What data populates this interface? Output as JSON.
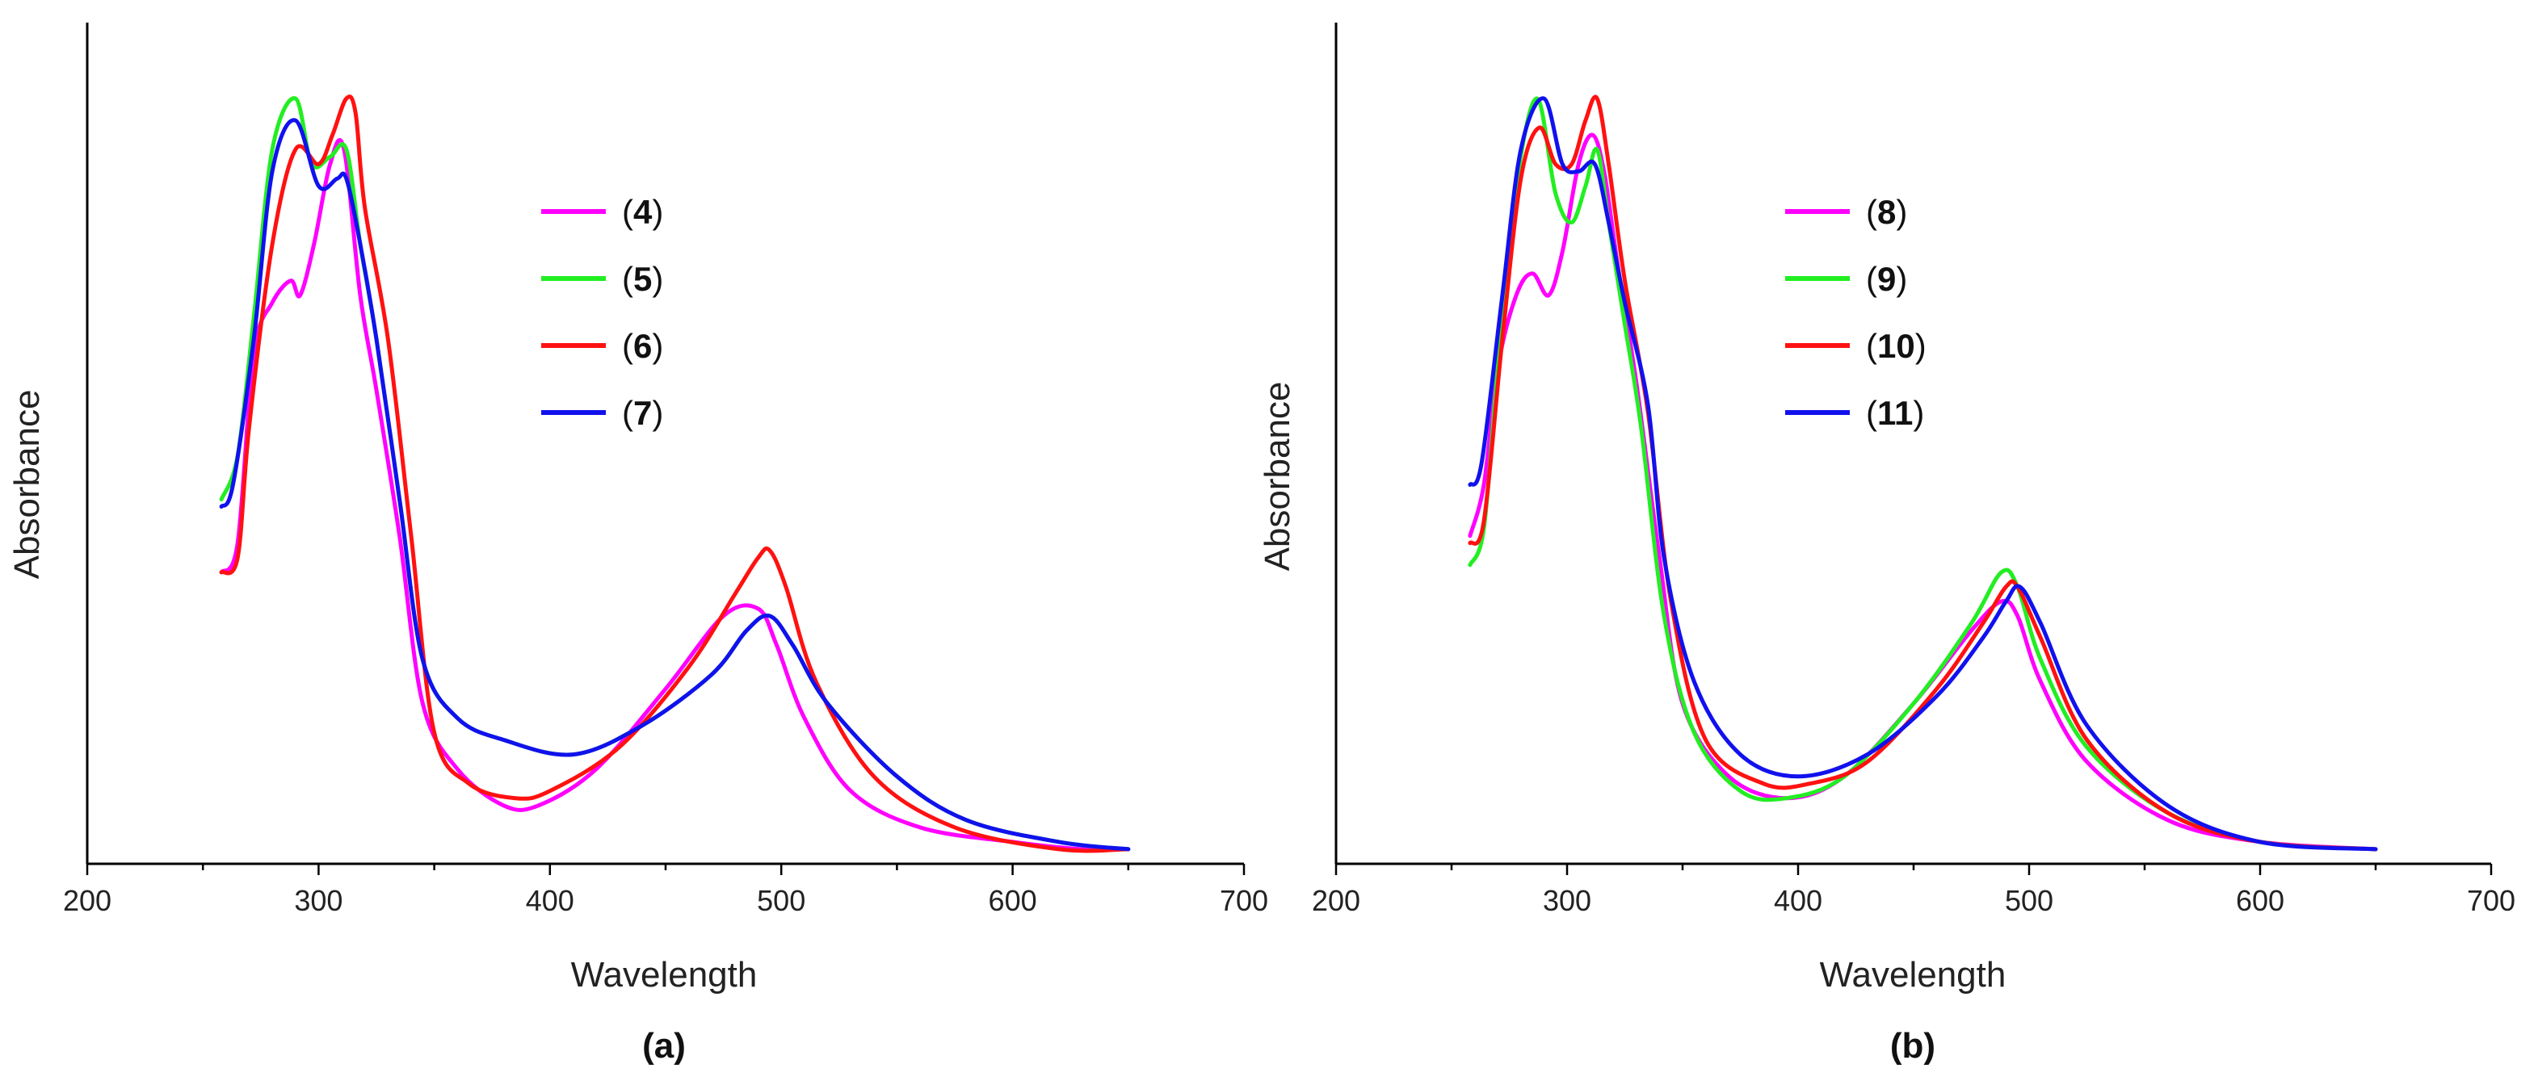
{
  "chart_data": [
    {
      "type": "line",
      "panel_label": "(a)",
      "xlabel": "Wavelength",
      "ylabel": "Absorbance",
      "xlim": [
        200,
        700
      ],
      "ylim": [
        0,
        1.05
      ],
      "xticks": [
        200,
        300,
        400,
        500,
        600,
        700
      ],
      "xtick_labels": [
        "200",
        "300",
        "400",
        "500",
        "600",
        "700"
      ],
      "grid": false,
      "legend_position": "upper-middle",
      "series": [
        {
          "name": "4",
          "color": "#ff00ff",
          "x": [
            258,
            265,
            272,
            280,
            288,
            292,
            298,
            305,
            311,
            318,
            325,
            335,
            345,
            360,
            380,
            395,
            420,
            450,
            475,
            490,
            498,
            510,
            530,
            560,
            600,
            630,
            650
          ],
          "y": [
            0.4,
            0.44,
            0.7,
            0.77,
            0.8,
            0.78,
            0.85,
            0.96,
            0.98,
            0.78,
            0.65,
            0.45,
            0.22,
            0.13,
            0.08,
            0.08,
            0.13,
            0.24,
            0.34,
            0.35,
            0.3,
            0.2,
            0.1,
            0.05,
            0.03,
            0.02,
            0.02
          ]
        },
        {
          "name": "5",
          "color": "#22ee22",
          "x": [
            258,
            265,
            272,
            280,
            290,
            297,
            305,
            312,
            318,
            325,
            335,
            345,
            360,
            380,
            410,
            440,
            470,
            485,
            495,
            505,
            520,
            550,
            580,
            620,
            650
          ],
          "y": [
            0.5,
            0.56,
            0.75,
            0.98,
            1.05,
            0.96,
            0.97,
            0.98,
            0.85,
            0.72,
            0.5,
            0.28,
            0.2,
            0.17,
            0.15,
            0.19,
            0.26,
            0.32,
            0.34,
            0.3,
            0.22,
            0.12,
            0.06,
            0.03,
            0.02
          ]
        },
        {
          "name": "6",
          "color": "#ff1111",
          "x": [
            258,
            265,
            270,
            280,
            290,
            300,
            306,
            312,
            316,
            320,
            330,
            340,
            350,
            365,
            385,
            400,
            430,
            460,
            480,
            490,
            495,
            502,
            515,
            540,
            575,
            620,
            650
          ],
          "y": [
            0.4,
            0.42,
            0.6,
            0.85,
            0.98,
            0.96,
            1.0,
            1.05,
            1.03,
            0.9,
            0.72,
            0.45,
            0.18,
            0.11,
            0.09,
            0.1,
            0.16,
            0.27,
            0.37,
            0.42,
            0.43,
            0.38,
            0.25,
            0.12,
            0.05,
            0.02,
            0.02
          ]
        },
        {
          "name": "7",
          "color": "#1111ee",
          "x": [
            258,
            263,
            272,
            280,
            290,
            300,
            308,
            312,
            318,
            325,
            335,
            345,
            360,
            380,
            410,
            440,
            470,
            485,
            495,
            505,
            520,
            550,
            580,
            620,
            650
          ],
          "y": [
            0.49,
            0.52,
            0.72,
            0.95,
            1.02,
            0.93,
            0.94,
            0.94,
            0.85,
            0.72,
            0.5,
            0.28,
            0.2,
            0.17,
            0.15,
            0.19,
            0.26,
            0.32,
            0.34,
            0.3,
            0.22,
            0.12,
            0.06,
            0.03,
            0.02
          ]
        }
      ]
    },
    {
      "type": "line",
      "panel_label": "(b)",
      "xlabel": "Wavelength",
      "ylabel": "Absorbance",
      "xlim": [
        200,
        700
      ],
      "ylim": [
        0,
        1.05
      ],
      "xticks": [
        200,
        300,
        400,
        500,
        600,
        700
      ],
      "xtick_labels": [
        "200",
        "300",
        "400",
        "500",
        "600",
        "700"
      ],
      "grid": false,
      "legend_position": "upper-middle",
      "series": [
        {
          "name": "8",
          "color": "#ff00ff",
          "x": [
            258,
            264,
            270,
            278,
            285,
            292,
            298,
            305,
            311,
            316,
            322,
            330,
            340,
            350,
            370,
            395,
            420,
            450,
            475,
            488,
            495,
            505,
            525,
            560,
            600,
            650
          ],
          "y": [
            0.45,
            0.52,
            0.68,
            0.78,
            0.81,
            0.78,
            0.84,
            0.96,
            1.0,
            0.95,
            0.82,
            0.66,
            0.42,
            0.22,
            0.12,
            0.09,
            0.12,
            0.22,
            0.32,
            0.36,
            0.34,
            0.25,
            0.14,
            0.06,
            0.03,
            0.02
          ]
        },
        {
          "name": "9",
          "color": "#22ee22",
          "x": [
            258,
            264,
            270,
            278,
            287,
            295,
            302,
            308,
            313,
            318,
            325,
            332,
            342,
            355,
            375,
            395,
            420,
            450,
            475,
            488,
            495,
            505,
            525,
            560,
            600,
            650
          ],
          "y": [
            0.41,
            0.46,
            0.68,
            0.93,
            1.05,
            0.92,
            0.88,
            0.93,
            0.98,
            0.88,
            0.74,
            0.6,
            0.34,
            0.18,
            0.1,
            0.09,
            0.12,
            0.22,
            0.33,
            0.4,
            0.38,
            0.28,
            0.16,
            0.07,
            0.03,
            0.02
          ]
        },
        {
          "name": "10",
          "color": "#ff1111",
          "x": [
            258,
            264,
            272,
            280,
            288,
            295,
            302,
            308,
            313,
            318,
            325,
            335,
            345,
            360,
            385,
            405,
            430,
            460,
            480,
            490,
            495,
            505,
            525,
            560,
            600,
            650
          ],
          "y": [
            0.44,
            0.47,
            0.72,
            0.94,
            1.01,
            0.96,
            0.96,
            1.02,
            1.05,
            0.96,
            0.8,
            0.62,
            0.36,
            0.17,
            0.11,
            0.11,
            0.14,
            0.24,
            0.33,
            0.38,
            0.38,
            0.31,
            0.17,
            0.07,
            0.03,
            0.02
          ]
        },
        {
          "name": "11",
          "color": "#1111ee",
          "x": [
            258,
            263,
            272,
            280,
            290,
            298,
            305,
            312,
            318,
            325,
            335,
            342,
            355,
            375,
            400,
            430,
            460,
            480,
            490,
            496,
            505,
            525,
            560,
            600,
            650
          ],
          "y": [
            0.52,
            0.55,
            0.78,
            0.98,
            1.05,
            0.96,
            0.95,
            0.96,
            0.88,
            0.77,
            0.63,
            0.42,
            0.25,
            0.15,
            0.12,
            0.15,
            0.23,
            0.31,
            0.36,
            0.38,
            0.33,
            0.19,
            0.08,
            0.03,
            0.02
          ]
        }
      ]
    }
  ]
}
